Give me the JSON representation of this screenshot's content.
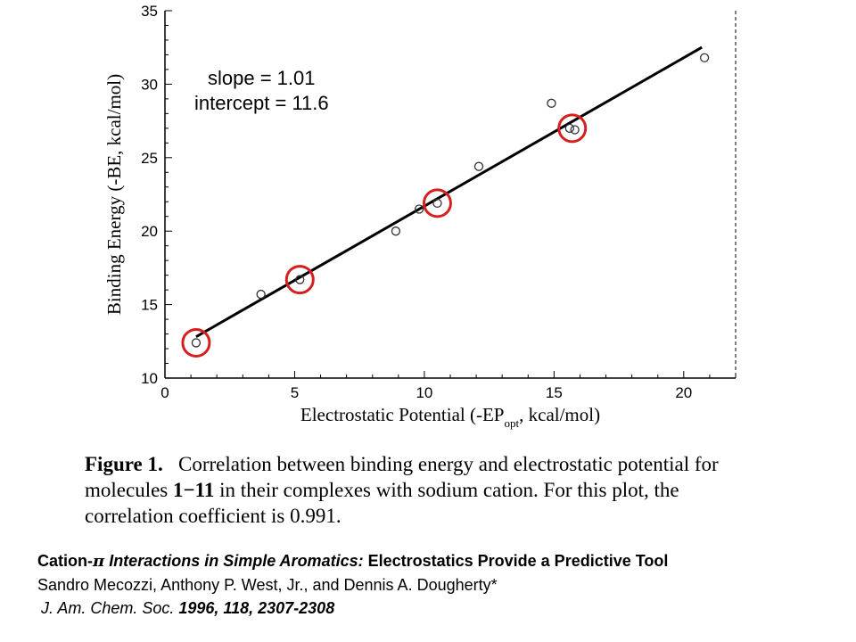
{
  "chart_data": {
    "type": "scatter",
    "xlabel_main": "Electrostatic Potential (-EP",
    "xlabel_sub": "opt",
    "xlabel_tail": ", kcal/mol)",
    "ylabel": "Binding Energy (-BE, kcal/mol)",
    "xlim": [
      0,
      22
    ],
    "ylim": [
      10,
      35
    ],
    "x_ticks": [
      0,
      5,
      10,
      15,
      20
    ],
    "y_ticks": [
      10,
      15,
      20,
      25,
      30,
      35
    ],
    "points": [
      {
        "x": 1.2,
        "y": 12.4
      },
      {
        "x": 3.7,
        "y": 15.7
      },
      {
        "x": 5.2,
        "y": 16.7
      },
      {
        "x": 8.9,
        "y": 20.0
      },
      {
        "x": 9.8,
        "y": 21.5
      },
      {
        "x": 10.5,
        "y": 21.9
      },
      {
        "x": 12.1,
        "y": 24.4
      },
      {
        "x": 14.9,
        "y": 28.7
      },
      {
        "x": 15.6,
        "y": 27.0
      },
      {
        "x": 15.8,
        "y": 26.9
      },
      {
        "x": 20.8,
        "y": 31.8
      }
    ],
    "fit_line": {
      "slope": 1.01,
      "intercept": 11.6,
      "x_range": [
        1.2,
        20.7
      ]
    },
    "highlighted_points": [
      {
        "x": 1.2,
        "y": 12.4
      },
      {
        "x": 5.2,
        "y": 16.7
      },
      {
        "x": 10.5,
        "y": 21.9
      },
      {
        "x": 15.7,
        "y": 27.0
      }
    ],
    "highlight_color": "#d62020",
    "annotation_slope": "slope = 1.01",
    "annotation_intercept": "intercept = 11.6"
  },
  "caption": {
    "figure_label": "Figure 1.",
    "text_1": "Correlation between binding energy and electrostatic potential for molecules ",
    "molecules": "1−11",
    "text_2": " in their complexes with sodium cation. For this plot, the correlation coefficient is 0.991."
  },
  "citation": {
    "title_prefix": "Cation-",
    "pi": "π",
    "title_italic": " Interactions in Simple Aromatics:",
    "title_rest": " Electrostatics Provide a Predictive Tool",
    "authors": "Sandro Mecozzi, Anthony P. West, Jr., and Dennis A. Dougherty*",
    "journal_italic": "J. Am. Chem. Soc.",
    "journal_rest": " 1996, 118, 2307-2308"
  }
}
